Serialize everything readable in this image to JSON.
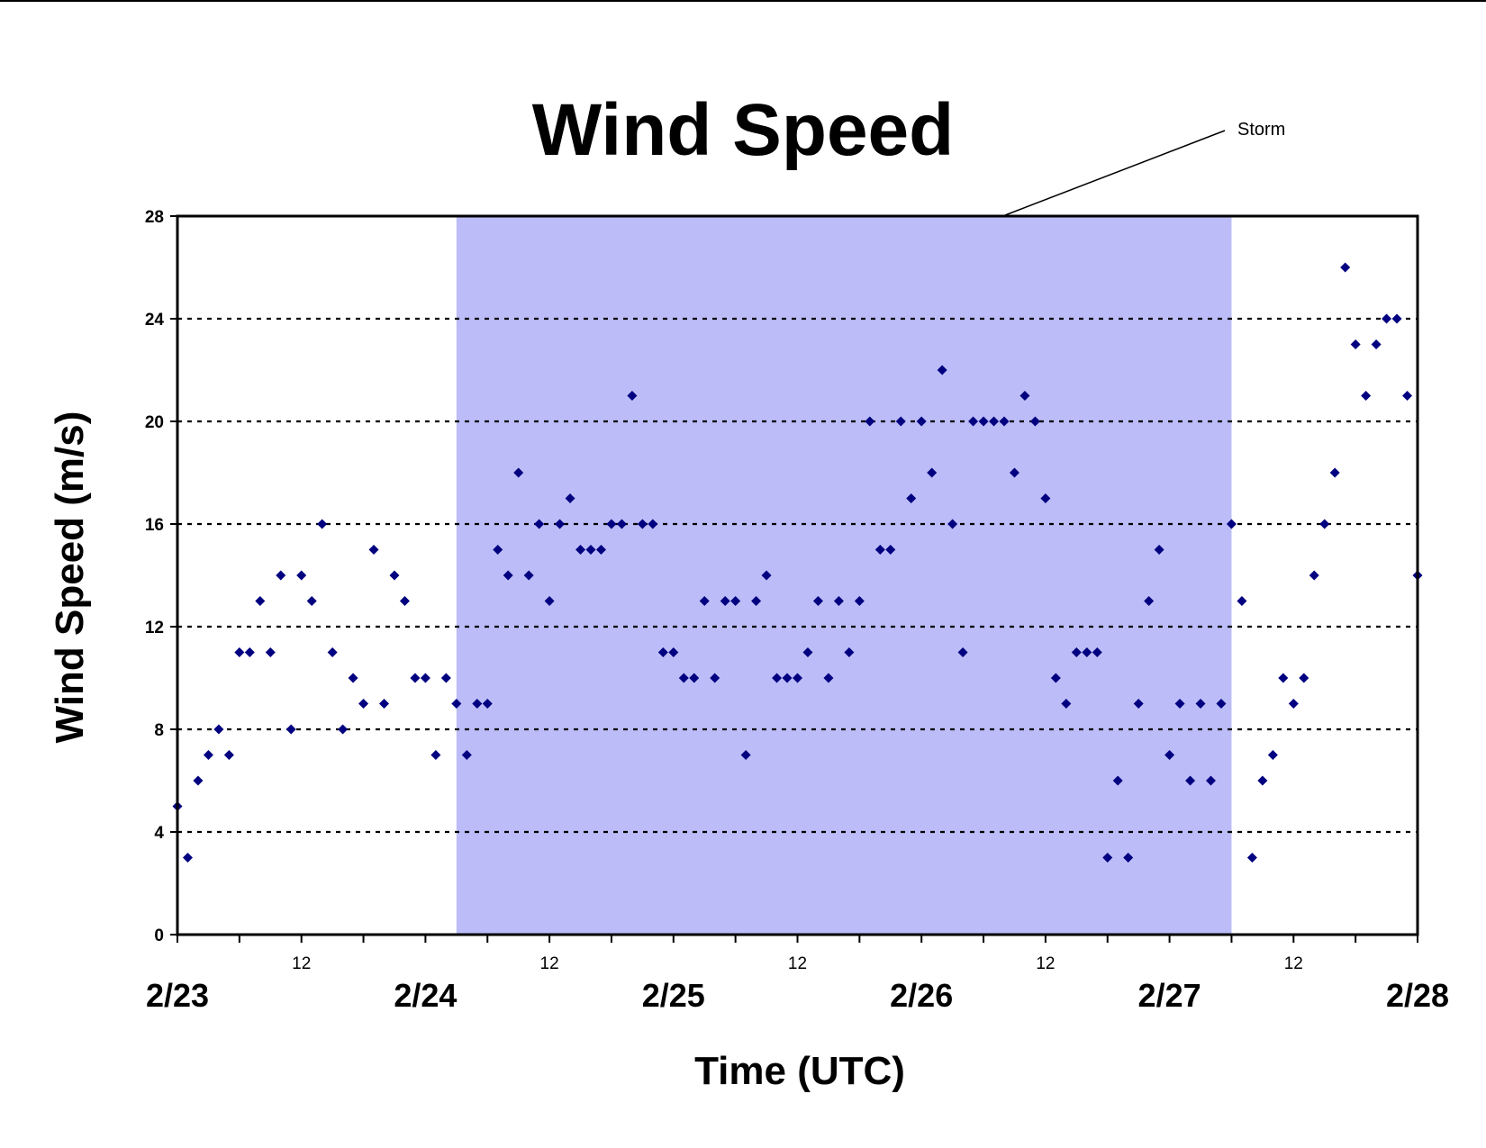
{
  "chart_data": {
    "type": "scatter",
    "title": "Wind Speed",
    "xlabel": "Time (UTC)",
    "ylabel": "Wind Speed (m/s)",
    "ylim": [
      0,
      28
    ],
    "yticks": [
      "0",
      "4",
      "8",
      "12",
      "16",
      "20",
      "24",
      "28"
    ],
    "xlim_hours": [
      0,
      120
    ],
    "x_major_labels": [
      "2/23",
      "2/24",
      "2/25",
      "2/26",
      "2/27",
      "2/28"
    ],
    "x_minor_label": "12",
    "grid": "horizontal dotted",
    "colors": {
      "points": "#000080",
      "storm_band": "#bcbcf8",
      "grid": "#000000"
    },
    "storm_band": {
      "start_hours": 27,
      "end_hours": 102
    },
    "annotation": {
      "text": "Storm"
    },
    "series": [
      {
        "x_hours": [
          0,
          1,
          2,
          3,
          4,
          5,
          6,
          7,
          8,
          9,
          10,
          11,
          12,
          13,
          14,
          15,
          16,
          17,
          18,
          19,
          20,
          21,
          22,
          23,
          24,
          25,
          26,
          27,
          28,
          29,
          30,
          31,
          32,
          33,
          34,
          35,
          36,
          37,
          38,
          39,
          40,
          41,
          42,
          43,
          44,
          45,
          46,
          47,
          48,
          49,
          50,
          51,
          52,
          53,
          54,
          55,
          56,
          57,
          58,
          59,
          60,
          61,
          62,
          63,
          64,
          65,
          66,
          67,
          68,
          69,
          70,
          71,
          72,
          73,
          74,
          75,
          76,
          77,
          78,
          79,
          80,
          81,
          82,
          83,
          84,
          85,
          86,
          87,
          88,
          89,
          90,
          91,
          92,
          93,
          94,
          95,
          96,
          97,
          98,
          99,
          100,
          101,
          102,
          103,
          104,
          105,
          106,
          107,
          108,
          109,
          110,
          111,
          112,
          113,
          114,
          115,
          116,
          117,
          118,
          119,
          120
        ],
        "values": [
          5,
          3,
          6,
          7,
          8,
          7,
          11,
          11,
          13,
          11,
          14,
          8,
          14,
          13,
          16,
          11,
          8,
          10,
          9,
          15,
          9,
          14,
          13,
          10,
          10,
          7,
          10,
          9,
          7,
          9,
          9,
          15,
          14,
          18,
          14,
          16,
          13,
          16,
          17,
          15,
          15,
          15,
          16,
          16,
          21,
          16,
          16,
          11,
          11,
          10,
          10,
          13,
          10,
          13,
          13,
          7,
          13,
          14,
          10,
          10,
          10,
          11,
          13,
          10,
          13,
          11,
          13,
          20,
          15,
          15,
          20,
          17,
          20,
          18,
          22,
          16,
          11,
          20,
          20,
          20,
          20,
          18,
          21,
          20,
          17,
          10,
          9,
          11,
          11,
          11,
          3,
          6,
          3,
          9,
          13,
          15,
          7,
          9,
          6,
          9,
          6,
          9,
          16,
          13,
          3,
          6,
          7,
          10,
          9,
          10,
          14,
          16,
          18,
          26,
          23,
          21,
          23,
          24,
          24,
          21,
          14
        ]
      }
    ]
  }
}
